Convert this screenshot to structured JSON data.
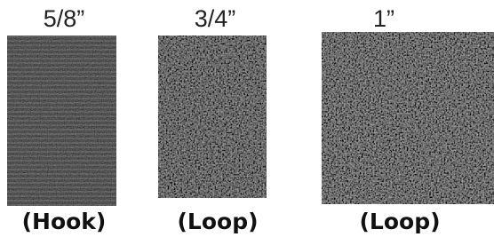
{
  "items": [
    {
      "size": "5/8”",
      "type": "(Hook)"
    },
    {
      "size": "3/4”",
      "type": "(Loop)"
    },
    {
      "size": "1”",
      "type": "(Loop)"
    }
  ]
}
